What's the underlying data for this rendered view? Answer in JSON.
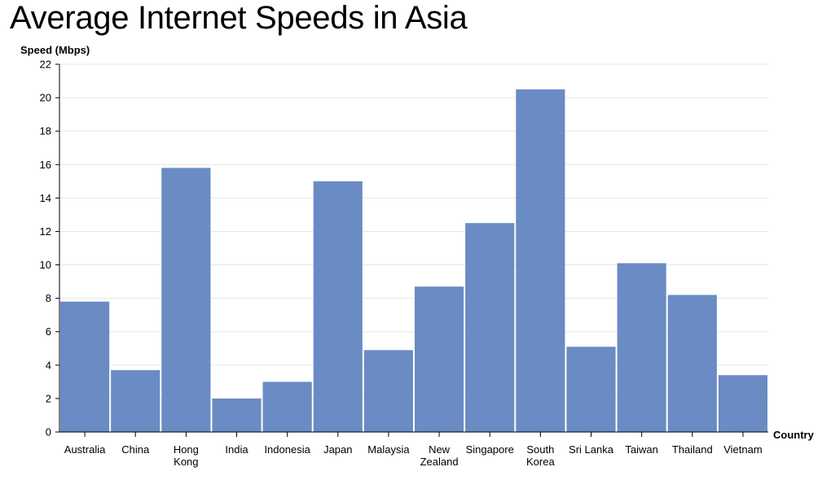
{
  "title": "Average Internet Speeds in Asia",
  "chart_data": {
    "type": "bar",
    "title": "Average Internet Speeds in Asia",
    "xlabel": "Country",
    "ylabel": "Speed (Mbps)",
    "categories": [
      "Australia",
      "China",
      "Hong Kong",
      "India",
      "Indonesia",
      "Japan",
      "Malaysia",
      "New Zealand",
      "Singapore",
      "South Korea",
      "Sri Lanka",
      "Taiwan",
      "Thailand",
      "Vietnam"
    ],
    "category_lines": [
      [
        "Australia"
      ],
      [
        "China"
      ],
      [
        "Hong",
        "Kong"
      ],
      [
        "India"
      ],
      [
        "Indonesia"
      ],
      [
        "Japan"
      ],
      [
        "Malaysia"
      ],
      [
        "New",
        "Zealand"
      ],
      [
        "Singapore"
      ],
      [
        "South",
        "Korea"
      ],
      [
        "Sri Lanka"
      ],
      [
        "Taiwan"
      ],
      [
        "Thailand"
      ],
      [
        "Vietnam"
      ]
    ],
    "values": [
      7.8,
      3.7,
      15.8,
      2.0,
      3.0,
      15.0,
      4.9,
      8.7,
      12.5,
      20.5,
      5.1,
      10.1,
      8.2,
      3.4
    ],
    "ylim": [
      0,
      22
    ],
    "yticks": [
      0,
      2,
      4,
      6,
      8,
      10,
      12,
      14,
      16,
      18,
      20,
      22
    ],
    "grid": true,
    "bar_color": "#6a8bc3",
    "grid_color": "#e6e6e6"
  }
}
